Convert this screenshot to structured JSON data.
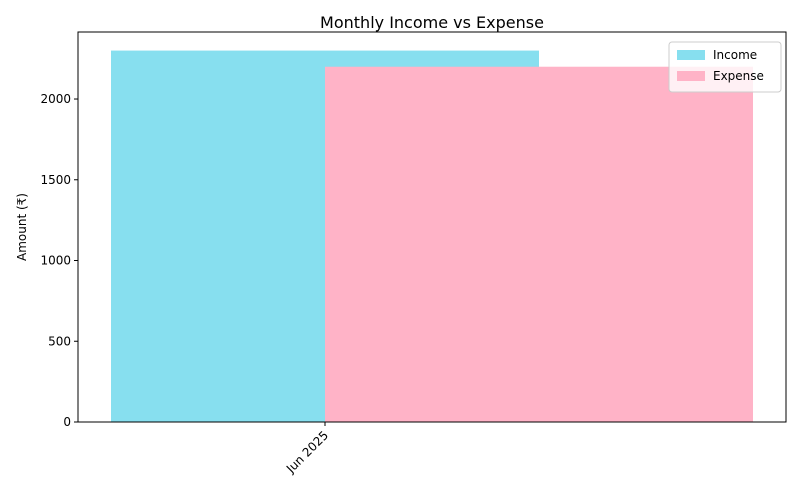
{
  "chart_data": {
    "type": "bar",
    "title": "Monthly Income vs Expense",
    "xlabel": "",
    "ylabel": "Amount (₹)",
    "categories": [
      "Jun 2025"
    ],
    "series": [
      {
        "name": "Income",
        "values": [
          2300
        ],
        "color": "#87dfef"
      },
      {
        "name": "Expense",
        "values": [
          2200
        ],
        "color": "#ffb3c7"
      }
    ],
    "ylim": [
      0,
      2415
    ],
    "yticks": [
      0,
      500,
      1000,
      1500,
      2000
    ],
    "grid": false,
    "legend_position": "top-right",
    "xtick_rotation": "45°"
  }
}
